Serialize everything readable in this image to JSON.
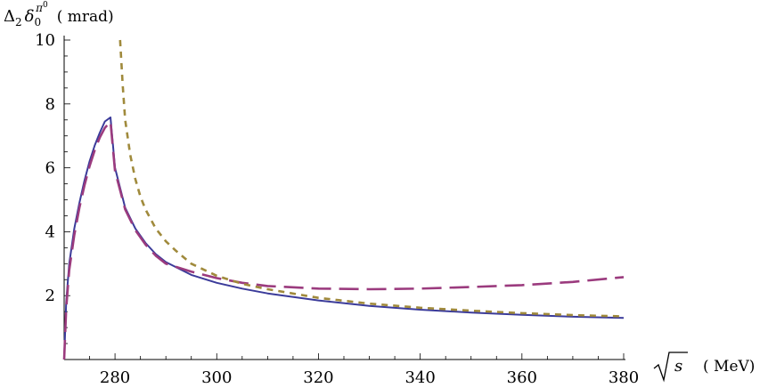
{
  "chart_data": {
    "type": "line",
    "title": "",
    "xlabel": "√s (MeV)",
    "ylabel": "Δ₂δ₀^π⁰ (mrad)",
    "xlabel_parts": {
      "radicand": "s",
      "unit": "( MeV)"
    },
    "ylabel_parts": {
      "delta": "Δ",
      "delta_sub": "2",
      "symbol": "δ",
      "symbol_sub": "0",
      "sup": "π",
      "sup_sup": "0",
      "unit": "( mrad)"
    },
    "xlim": [
      270,
      380
    ],
    "ylim": [
      0,
      10
    ],
    "xticks": [
      280,
      300,
      320,
      340,
      360,
      380
    ],
    "yticks": [
      2,
      4,
      6,
      8,
      10
    ],
    "grid": false,
    "series": [
      {
        "style": "solid",
        "color": "#3b3b9a",
        "x": [
          270,
          270.4,
          271,
          272,
          273,
          274,
          275,
          276,
          277,
          278,
          279.1,
          280,
          282,
          284,
          286,
          288,
          290,
          295,
          300,
          305,
          310,
          320,
          330,
          340,
          350,
          360,
          370,
          380
        ],
        "y": [
          0,
          1.8,
          3.0,
          4.1,
          4.9,
          5.6,
          6.2,
          6.7,
          7.1,
          7.45,
          7.58,
          6.0,
          4.75,
          4.1,
          3.65,
          3.3,
          3.05,
          2.65,
          2.4,
          2.22,
          2.07,
          1.85,
          1.68,
          1.56,
          1.47,
          1.4,
          1.34,
          1.3
        ]
      },
      {
        "style": "long-dash",
        "color": "#9b3b7e",
        "x": [
          270,
          270.4,
          271,
          272,
          273,
          274,
          275,
          276,
          277,
          278,
          279.1,
          280,
          282,
          284,
          286,
          288,
          290,
          295,
          300,
          305,
          310,
          320,
          330,
          340,
          350,
          360,
          370,
          380
        ],
        "y": [
          0,
          1.6,
          2.8,
          3.9,
          4.75,
          5.45,
          6.05,
          6.55,
          6.95,
          7.25,
          7.45,
          5.9,
          4.7,
          4.05,
          3.6,
          3.25,
          3.0,
          2.75,
          2.55,
          2.4,
          2.3,
          2.22,
          2.2,
          2.22,
          2.27,
          2.33,
          2.43,
          2.58
        ]
      },
      {
        "style": "short-dash",
        "color": "#a08a3c",
        "x": [
          281,
          281.5,
          282,
          283,
          284,
          285,
          286,
          288,
          290,
          292,
          295,
          300,
          305,
          310,
          320,
          330,
          340,
          350,
          360,
          370,
          380
        ],
        "y": [
          10,
          8.6,
          7.5,
          6.4,
          5.65,
          5.1,
          4.7,
          4.1,
          3.7,
          3.4,
          3.0,
          2.62,
          2.37,
          2.2,
          1.93,
          1.75,
          1.62,
          1.53,
          1.45,
          1.39,
          1.35
        ]
      }
    ]
  }
}
